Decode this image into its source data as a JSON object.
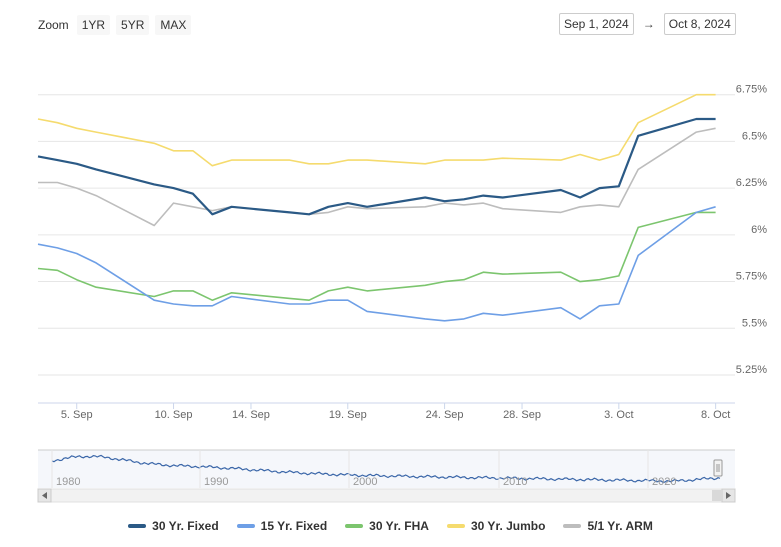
{
  "zoom": {
    "label": "Zoom",
    "buttons": [
      "1YR",
      "5YR",
      "MAX"
    ]
  },
  "range": {
    "from": "Sep 1, 2024",
    "arrow": "→",
    "to": "Oct 8, 2024"
  },
  "colors": {
    "fixed30": "#2b5a86",
    "fixed15": "#6e9fe6",
    "fha30": "#7cc56e",
    "jumbo30": "#f5db6e",
    "arm51": "#bdbdbd"
  },
  "legend": [
    {
      "name": "30 Yr. Fixed",
      "color": "#2b5a86"
    },
    {
      "name": "15 Yr. Fixed",
      "color": "#6e9fe6"
    },
    {
      "name": "30 Yr. FHA",
      "color": "#7cc56e"
    },
    {
      "name": "30 Yr. Jumbo",
      "color": "#f5db6e"
    },
    {
      "name": "5/1 Yr. ARM",
      "color": "#bdbdbd"
    }
  ],
  "navigator": {
    "year_labels": [
      "1980",
      "1990",
      "2000",
      "2010",
      "2020"
    ]
  },
  "chart_data": {
    "type": "line",
    "x_tick_labels": [
      "5. Sep",
      "10. Sep",
      "14. Sep",
      "19. Sep",
      "24. Sep",
      "28. Sep",
      "3. Oct",
      "8. Oct"
    ],
    "x_ticks": [
      "2024-09-05",
      "2024-09-10",
      "2024-09-14",
      "2024-09-19",
      "2024-09-24",
      "2024-09-28",
      "2024-10-03",
      "2024-10-08"
    ],
    "y_tick_labels": [
      "5.25%",
      "5.5%",
      "5.75%",
      "6%",
      "6.25%",
      "6.5%",
      "6.75%"
    ],
    "y_ticks": [
      5.25,
      5.5,
      5.75,
      6.0,
      6.25,
      6.5,
      6.75
    ],
    "ylim": [
      5.1,
      7.0
    ],
    "xlim": [
      "2024-09-03",
      "2024-10-09"
    ],
    "grid": true,
    "legend_position": "bottom",
    "x": [
      "2024-09-03",
      "2024-09-04",
      "2024-09-05",
      "2024-09-06",
      "2024-09-09",
      "2024-09-10",
      "2024-09-11",
      "2024-09-12",
      "2024-09-13",
      "2024-09-16",
      "2024-09-17",
      "2024-09-18",
      "2024-09-19",
      "2024-09-20",
      "2024-09-23",
      "2024-09-24",
      "2024-09-25",
      "2024-09-26",
      "2024-09-27",
      "2024-09-30",
      "2024-10-01",
      "2024-10-02",
      "2024-10-03",
      "2024-10-04",
      "2024-10-07",
      "2024-10-08"
    ],
    "series": [
      {
        "name": "30 Yr. Fixed",
        "values": [
          6.42,
          6.4,
          6.38,
          6.35,
          6.27,
          6.25,
          6.22,
          6.11,
          6.15,
          6.12,
          6.11,
          6.15,
          6.17,
          6.15,
          6.2,
          6.18,
          6.19,
          6.21,
          6.2,
          6.24,
          6.2,
          6.25,
          6.26,
          6.53,
          6.62,
          6.62
        ]
      },
      {
        "name": "15 Yr. Fixed",
        "values": [
          5.95,
          5.93,
          5.9,
          5.85,
          5.65,
          5.63,
          5.62,
          5.62,
          5.67,
          5.63,
          5.63,
          5.65,
          5.65,
          5.59,
          5.55,
          5.54,
          5.55,
          5.58,
          5.57,
          5.61,
          5.55,
          5.62,
          5.63,
          5.89,
          6.12,
          6.15
        ]
      },
      {
        "name": "30 Yr. FHA",
        "values": [
          5.82,
          5.81,
          5.76,
          5.72,
          5.67,
          5.7,
          5.7,
          5.65,
          5.69,
          5.66,
          5.65,
          5.7,
          5.72,
          5.7,
          5.73,
          5.75,
          5.76,
          5.8,
          5.79,
          5.8,
          5.75,
          5.76,
          5.78,
          6.04,
          6.12,
          6.12
        ]
      },
      {
        "name": "30 Yr. Jumbo",
        "values": [
          6.62,
          6.6,
          6.57,
          6.55,
          6.49,
          6.45,
          6.45,
          6.37,
          6.4,
          6.4,
          6.38,
          6.38,
          6.4,
          6.4,
          6.38,
          6.4,
          6.4,
          6.4,
          6.41,
          6.4,
          6.43,
          6.4,
          6.43,
          6.6,
          6.75,
          6.75
        ]
      },
      {
        "name": "5/1 Yr. ARM",
        "values": [
          6.28,
          6.28,
          6.25,
          6.21,
          6.05,
          6.17,
          6.15,
          6.13,
          6.15,
          6.12,
          6.11,
          6.12,
          6.15,
          6.14,
          6.15,
          6.17,
          6.16,
          6.17,
          6.14,
          6.12,
          6.15,
          6.16,
          6.15,
          6.35,
          6.55,
          6.57
        ]
      }
    ]
  }
}
